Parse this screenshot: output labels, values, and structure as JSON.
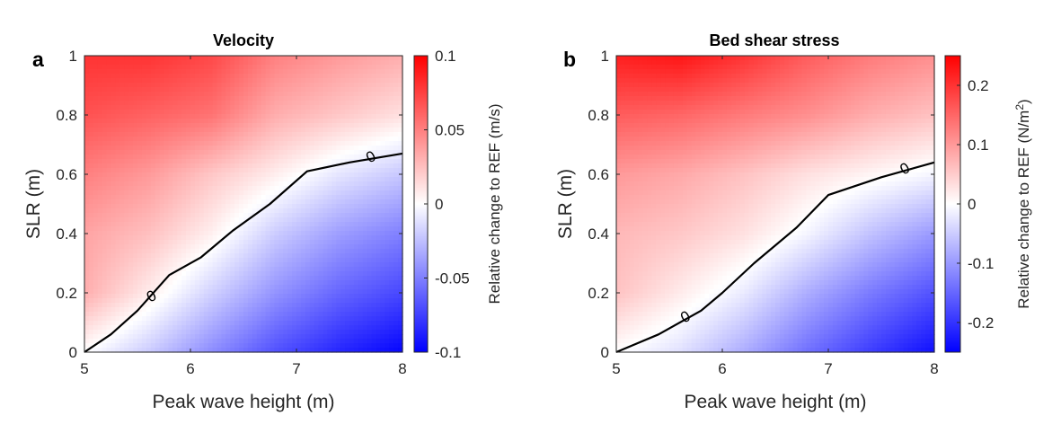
{
  "chart_data": [
    {
      "type": "heatmap",
      "panel_label": "a",
      "title": "Velocity",
      "xlabel": "Peak wave height (m)",
      "ylabel": "SLR (m)",
      "xlim": [
        5,
        8
      ],
      "ylim": [
        0,
        1
      ],
      "xticks": [
        5,
        6,
        7,
        8
      ],
      "yticks": [
        0,
        0.2,
        0.4,
        0.6,
        0.8,
        1
      ],
      "ytick_labels": [
        "0",
        "0.2",
        "0.4",
        "0.6",
        "0.8",
        "1"
      ],
      "colorbar": {
        "label": "Relative change to REF (m/s)",
        "range": [
          -0.1,
          0.1
        ],
        "ticks": [
          -0.1,
          -0.05,
          0,
          0.05,
          0.1
        ],
        "tick_labels": [
          "-0.1",
          "-0.05",
          "0",
          "0.05",
          "0.1"
        ],
        "colormap": [
          "#0000ff",
          "#ffffff",
          "#ff0000"
        ]
      },
      "zero_contour": {
        "label": "0",
        "points": [
          [
            5.0,
            0.0
          ],
          [
            5.25,
            0.06
          ],
          [
            5.5,
            0.14
          ],
          [
            5.8,
            0.26
          ],
          [
            6.1,
            0.32
          ],
          [
            6.4,
            0.41
          ],
          [
            6.75,
            0.5
          ],
          [
            7.1,
            0.61
          ],
          [
            7.5,
            0.64
          ],
          [
            8.0,
            0.67
          ]
        ],
        "label_positions": [
          [
            5.63,
            0.19
          ],
          [
            7.7,
            0.66
          ]
        ]
      },
      "grid": {
        "x": [
          5,
          5.6,
          6.2,
          6.8,
          7.4,
          8
        ],
        "y": [
          0,
          0.2,
          0.4,
          0.6,
          0.8,
          1
        ],
        "z": [
          [
            0.0,
            -0.02,
            -0.045,
            -0.068,
            -0.085,
            -0.098
          ],
          [
            0.032,
            0.008,
            -0.018,
            -0.042,
            -0.06,
            -0.072
          ],
          [
            0.036,
            0.025,
            0.006,
            -0.02,
            -0.038,
            -0.05
          ],
          [
            0.05,
            0.04,
            0.022,
            0.007,
            -0.01,
            -0.022
          ],
          [
            0.068,
            0.062,
            0.055,
            0.032,
            0.022,
            0.012
          ],
          [
            0.08,
            0.08,
            0.072,
            0.05,
            0.04,
            0.032
          ]
        ]
      }
    },
    {
      "type": "heatmap",
      "panel_label": "b",
      "title": "Bed shear stress",
      "xlabel": "Peak wave height (m)",
      "ylabel": "SLR (m)",
      "xlim": [
        5,
        8
      ],
      "ylim": [
        0,
        1
      ],
      "xticks": [
        5,
        6,
        7,
        8
      ],
      "yticks": [
        0,
        0.2,
        0.4,
        0.6,
        0.8,
        1
      ],
      "ytick_labels": [
        "0",
        "0.2",
        "0.4",
        "0.6",
        "0.8",
        "1"
      ],
      "colorbar": {
        "label": "Relative change to REF (N/m",
        "label_superscript": "2",
        "label_suffix": ")",
        "range": [
          -0.25,
          0.25
        ],
        "ticks": [
          -0.2,
          -0.1,
          0,
          0.1,
          0.2
        ],
        "tick_labels": [
          "-0.2",
          "-0.1",
          "0",
          "0.1",
          "0.2"
        ],
        "colormap": [
          "#0000ff",
          "#ffffff",
          "#ff0000"
        ]
      },
      "zero_contour": {
        "label": "0",
        "points": [
          [
            5.0,
            0.0
          ],
          [
            5.4,
            0.06
          ],
          [
            5.8,
            0.14
          ],
          [
            6.0,
            0.2
          ],
          [
            6.3,
            0.3
          ],
          [
            6.7,
            0.42
          ],
          [
            7.0,
            0.53
          ],
          [
            7.5,
            0.59
          ],
          [
            8.0,
            0.64
          ]
        ],
        "label_positions": [
          [
            5.65,
            0.12
          ],
          [
            7.72,
            0.62
          ]
        ]
      },
      "grid": {
        "x": [
          5,
          5.6,
          6.2,
          6.8,
          7.4,
          8
        ],
        "y": [
          0,
          0.2,
          0.4,
          0.6,
          0.8,
          1
        ],
        "z": [
          [
            0.0,
            -0.03,
            -0.08,
            -0.14,
            -0.19,
            -0.235
          ],
          [
            0.06,
            0.02,
            -0.02,
            -0.08,
            -0.13,
            -0.17
          ],
          [
            0.07,
            0.055,
            0.03,
            -0.01,
            -0.06,
            -0.1
          ],
          [
            0.1,
            0.085,
            0.06,
            0.03,
            0.01,
            -0.01
          ],
          [
            0.16,
            0.15,
            0.13,
            0.11,
            0.08,
            0.06
          ],
          [
            0.22,
            0.23,
            0.2,
            0.16,
            0.13,
            0.11
          ]
        ]
      }
    }
  ]
}
